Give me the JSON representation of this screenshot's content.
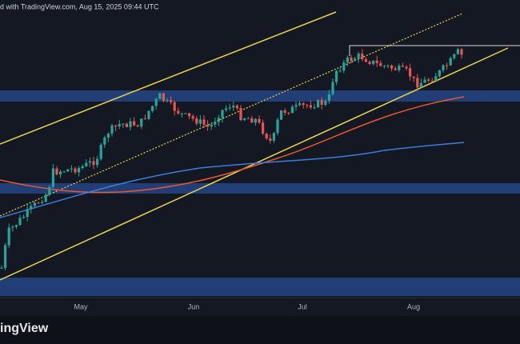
{
  "header": {
    "text": "d with TradingView.com, Aug 15, 2025 09:44 UTC"
  },
  "x_axis": {
    "labels": [
      "May",
      "Jun",
      "Jul",
      "Aug"
    ]
  },
  "logo": {
    "text": "ingView"
  }
}
